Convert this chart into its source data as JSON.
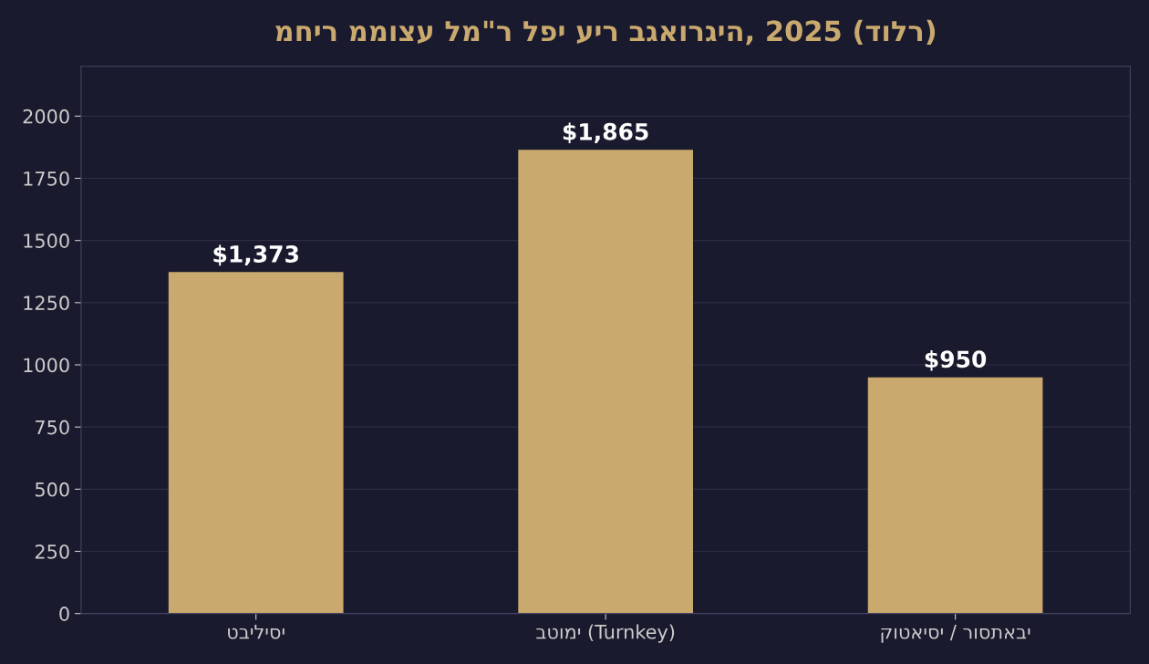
{
  "chart_data": {
    "type": "bar",
    "title": "מחיר ממוצע למ\"ר לפי עיר בגאורגיה, 2025 (דולר)",
    "categories": [
      "טביליסי",
      "בטומי (Turnkey)",
      "קוטאיסי / רוסתאבי"
    ],
    "values": [
      1373,
      1865,
      950
    ],
    "color": "#c9a96e",
    "value_labels": [
      "$1,373",
      "$1,865",
      "$950"
    ],
    "ylim": [
      0,
      2200
    ],
    "yticks": [
      0,
      250,
      500,
      750,
      1000,
      1250,
      1500,
      1750,
      2000
    ],
    "grid": "y"
  }
}
